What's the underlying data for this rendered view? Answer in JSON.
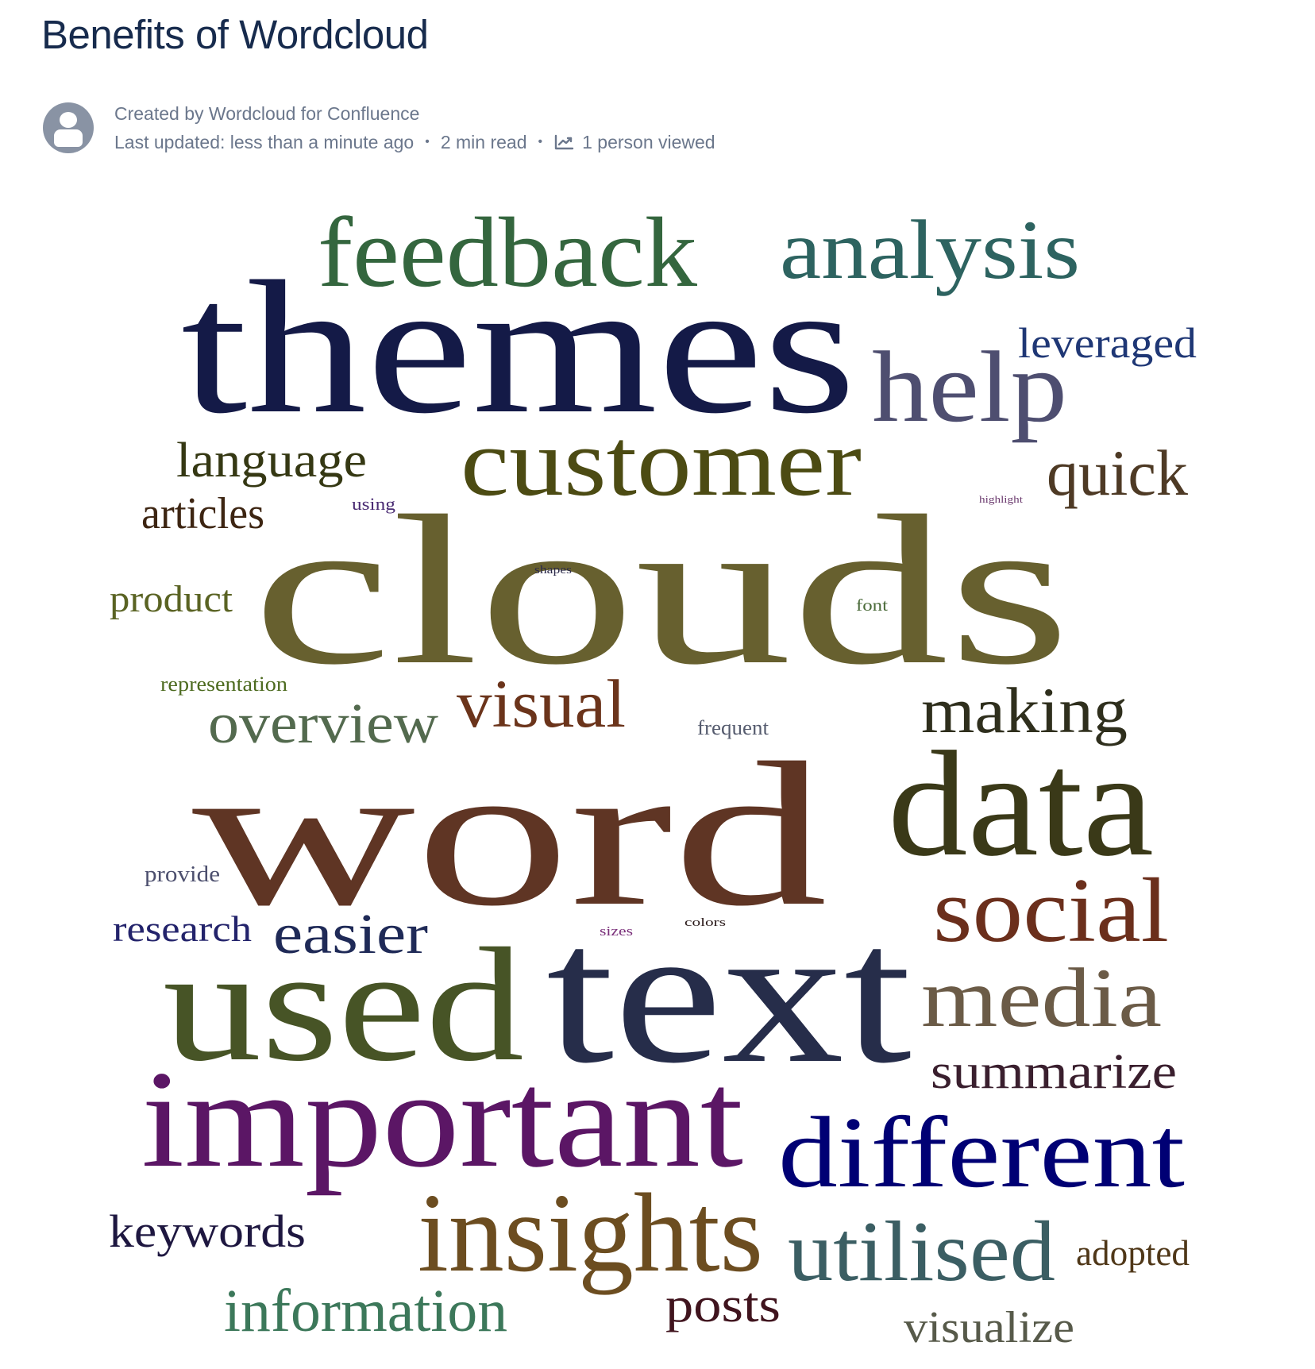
{
  "page": {
    "title": "Benefits of Wordcloud"
  },
  "byline": {
    "created_by": "Created by Wordcloud for Confluence",
    "last_updated": "Last updated: less than a minute ago",
    "read_time": "2 min read",
    "views": "1 person viewed",
    "avatar_icon": "default-avatar-icon",
    "views_icon": "chart-line-icon"
  },
  "wordcloud": {
    "words": [
      {
        "text": "themes",
        "color": "#141a47"
      },
      {
        "text": "clouds",
        "color": "#67602f"
      },
      {
        "text": "word",
        "color": "#5f3524"
      },
      {
        "text": "text",
        "color": "#262d4a"
      },
      {
        "text": "used",
        "color": "#475426"
      },
      {
        "text": "important",
        "color": "#5b1665"
      },
      {
        "text": "data",
        "color": "#3a3918"
      },
      {
        "text": "different",
        "color": "#000074"
      },
      {
        "text": "insights",
        "color": "#6c4d20"
      },
      {
        "text": "feedback",
        "color": "#34663e"
      },
      {
        "text": "customer",
        "color": "#4c4b13"
      },
      {
        "text": "analysis",
        "color": "#2d6360"
      },
      {
        "text": "help",
        "color": "#4e4e70"
      },
      {
        "text": "social",
        "color": "#6b2f1c"
      },
      {
        "text": "media",
        "color": "#6b5b47"
      },
      {
        "text": "utilised",
        "color": "#3b5e63"
      },
      {
        "text": "visual",
        "color": "#6b341b"
      },
      {
        "text": "making",
        "color": "#2f2f1d"
      },
      {
        "text": "overview",
        "color": "#536a4e"
      },
      {
        "text": "quick",
        "color": "#4e3a25"
      },
      {
        "text": "language",
        "color": "#353813"
      },
      {
        "text": "easier",
        "color": "#1f2a57"
      },
      {
        "text": "information",
        "color": "#3c785a"
      },
      {
        "text": "summarize",
        "color": "#3a1f2e"
      },
      {
        "text": "leveraged",
        "color": "#1f3775"
      },
      {
        "text": "articles",
        "color": "#3d2512"
      },
      {
        "text": "keywords",
        "color": "#1e1740"
      },
      {
        "text": "posts",
        "color": "#40141e"
      },
      {
        "text": "visualize",
        "color": "#575a4a"
      },
      {
        "text": "product",
        "color": "#5a6323"
      },
      {
        "text": "research",
        "color": "#23236b"
      },
      {
        "text": "adopted",
        "color": "#4f3718"
      },
      {
        "text": "representation",
        "color": "#4d6b20"
      },
      {
        "text": "provide",
        "color": "#4c4f6e"
      },
      {
        "text": "frequent",
        "color": "#555b6e"
      },
      {
        "text": "using",
        "color": "#4a2b73"
      },
      {
        "text": "font",
        "color": "#4b6b3a"
      },
      {
        "text": "shapes",
        "color": "#2c2a4a"
      },
      {
        "text": "highlight",
        "color": "#6b3a6e"
      },
      {
        "text": "sizes",
        "color": "#7a2f7a"
      },
      {
        "text": "colors",
        "color": "#2a1a1a"
      }
    ]
  }
}
